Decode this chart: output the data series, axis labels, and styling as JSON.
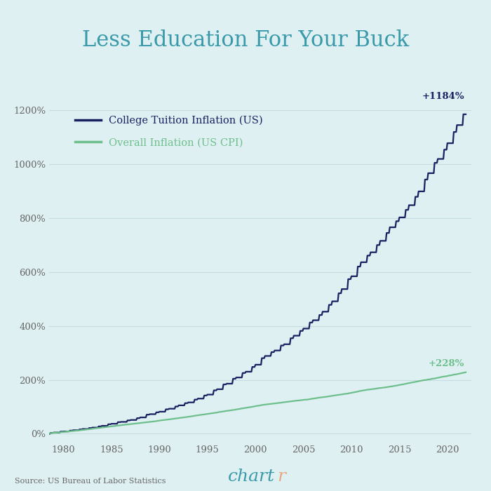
{
  "title": "Less Education For Your Buck",
  "title_color": "#3a9aaa",
  "background_color": "#dff0f3",
  "source_text": "Source: US Bureau of Labor Statistics",
  "chartr_color_ch": "#3a9aaa",
  "chartr_color_r": "#e8a87c",
  "line1_label": "College Tuition Inflation (US)",
  "line1_color": "#1a2060",
  "line1_end_value": "+1184%",
  "line2_label": "Overall Inflation (US CPI)",
  "line2_color": "#6dbf8c",
  "line2_end_value": "+228%",
  "xmin": 1978.5,
  "xmax": 2022.5,
  "ymin": -30,
  "ymax": 1280,
  "yticks": [
    0,
    200,
    400,
    600,
    800,
    1000,
    1200
  ],
  "xticks": [
    1980,
    1985,
    1990,
    1995,
    2000,
    2005,
    2010,
    2015,
    2020
  ],
  "grid_color": "#c5dde0",
  "tick_label_color": "#666666",
  "font_family": "DejaVu Serif"
}
